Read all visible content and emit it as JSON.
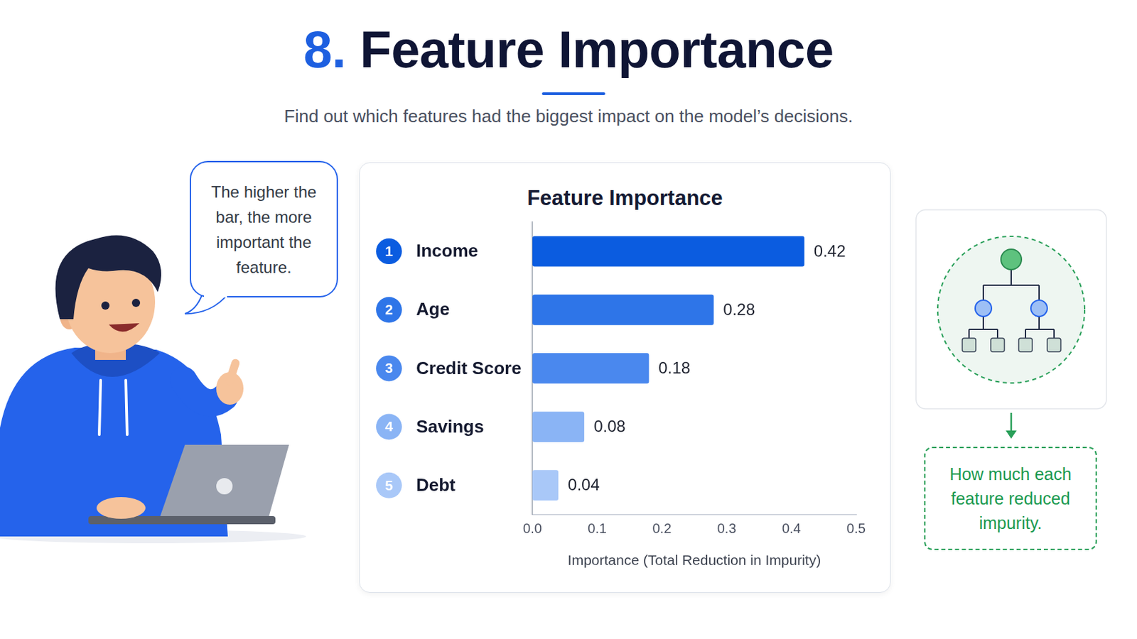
{
  "header": {
    "number": "8.",
    "title": "Feature Importance",
    "subtitle": "Find out which features had the biggest impact on the model’s decisions."
  },
  "speech_bubble": "The higher the bar, the more important the feature.",
  "note": "How much each feature reduced impurity.",
  "chart_data": {
    "type": "bar",
    "orientation": "horizontal",
    "title": "Feature Importance",
    "ranks": [
      1,
      2,
      3,
      4,
      5
    ],
    "categories": [
      "Income",
      "Age",
      "Credit Score",
      "Savings",
      "Debt"
    ],
    "values": [
      0.42,
      0.28,
      0.18,
      0.08,
      0.04
    ],
    "colors": [
      "#0b5ce0",
      "#2e75e8",
      "#4a88ee",
      "#8ab4f5",
      "#a9c8f8"
    ],
    "xlim": [
      0,
      0.5
    ],
    "xticks": [
      {
        "value": 0,
        "label": "0.0"
      },
      0.1,
      0.2,
      0.3,
      0.4,
      0.5
    ],
    "xlabel": "Importance (Total Reduction in Impurity)",
    "data_labels": true,
    "grid": false
  }
}
